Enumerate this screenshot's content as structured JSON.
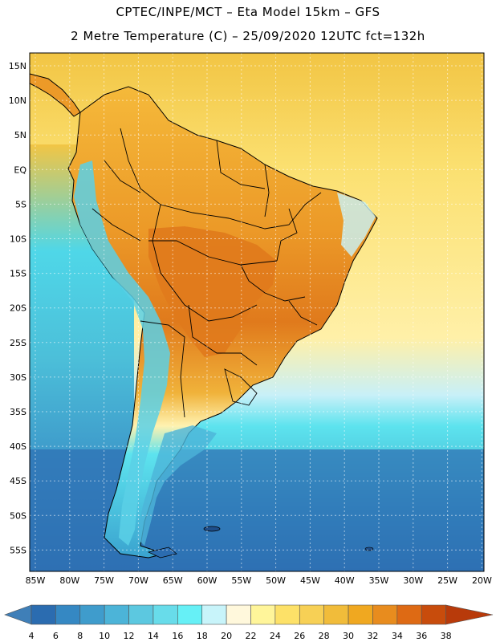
{
  "header": {
    "line1": "CPTEC/INPE/MCT –  Eta Model 15km – GFS",
    "line2": "2 Metre Temperature (C) – 25/09/2020 12UTC fct=132h"
  },
  "map": {
    "lat_labels": [
      "15N",
      "10N",
      "5N",
      "EQ",
      "5S",
      "10S",
      "15S",
      "20S",
      "25S",
      "30S",
      "35S",
      "40S",
      "45S",
      "50S",
      "55S"
    ],
    "lon_labels": [
      "85W",
      "80W",
      "75W",
      "70W",
      "65W",
      "60W",
      "55W",
      "50W",
      "45W",
      "40W",
      "35W",
      "30W",
      "25W",
      "20W"
    ],
    "ocean_gradient": [
      "#f2c544",
      "#fbe070",
      "#fff0a8",
      "#c8f0f8",
      "#5de3ee",
      "#4cc6dc",
      "#3a9fcc",
      "#2b6cb0"
    ],
    "land_colors": {
      "hot": "#e07a1c",
      "warm": "#ec9a28",
      "mild": "#f5b93a",
      "andes_cool": "#5ad0e6",
      "south_cool": "#3aa3cf"
    },
    "border_color": "#000000"
  },
  "colorbar": {
    "ticks": [
      "4",
      "6",
      "8",
      "10",
      "12",
      "14",
      "16",
      "18",
      "20",
      "22",
      "24",
      "26",
      "28",
      "30",
      "32",
      "34",
      "36",
      "38"
    ],
    "colors": [
      "#3f7fb8",
      "#2b6cb0",
      "#3588c3",
      "#3f9ccc",
      "#4cb4d8",
      "#5cc8e0",
      "#68dcea",
      "#66f0f6",
      "#c8f4fa",
      "#fff8dc",
      "#fff59a",
      "#fde168",
      "#f7d055",
      "#f1bc3a",
      "#f0a820",
      "#e88c1e",
      "#de6a14",
      "#c84c0c",
      "#b83a0a"
    ]
  }
}
